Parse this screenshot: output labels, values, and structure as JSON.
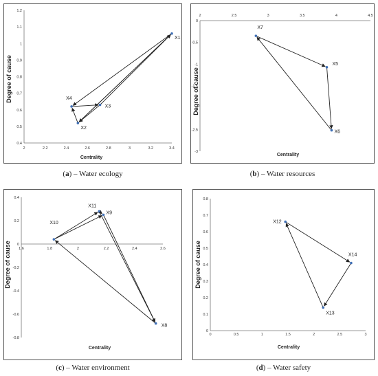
{
  "chart_data": [
    {
      "type": "line",
      "id": "a",
      "caption_letter": "a",
      "caption_text": " – Water ecology",
      "xlabel": "Centrality",
      "ylabel": "Degree of cause",
      "xlim": [
        2,
        3.4
      ],
      "ylim": [
        0.4,
        1.2
      ],
      "x_ticks": [
        "2",
        "2.2",
        "2.4",
        "2.6",
        "2.8",
        "3",
        "3.2",
        "3.4"
      ],
      "y_ticks": [
        "0.4",
        "0.5",
        "0.6",
        "0.7",
        "0.8",
        "0.9",
        "1",
        "1.1",
        "1.2"
      ],
      "points": [
        {
          "label": "X1",
          "x": 3.4,
          "y": 1.06
        },
        {
          "label": "X2",
          "x": 2.51,
          "y": 0.52
        },
        {
          "label": "X3",
          "x": 2.72,
          "y": 0.63
        },
        {
          "label": "X4",
          "x": 2.45,
          "y": 0.62
        }
      ],
      "edges": [
        [
          "X1",
          "X4"
        ],
        [
          "X4",
          "X3"
        ],
        [
          "X3",
          "X2"
        ],
        [
          "X2",
          "X4"
        ],
        [
          "X2",
          "X1"
        ],
        [
          "X3",
          "X1"
        ],
        [
          "X1",
          "X2"
        ]
      ]
    },
    {
      "type": "line",
      "id": "b",
      "caption_letter": "b",
      "caption_text": " – Water resources",
      "xlabel": "Centrality",
      "ylabel": "Degree of cause",
      "xlim": [
        2,
        4.5
      ],
      "ylim": [
        -3,
        0
      ],
      "x_ticks": [
        "2",
        "2.5",
        "3",
        "3.5",
        "4",
        "4.5"
      ],
      "y_ticks": [
        "0",
        "-0.5",
        "-1",
        "-1.5",
        "-2",
        "-2.5",
        "-3"
      ],
      "points": [
        {
          "label": "X5",
          "x": 3.86,
          "y": -1.07
        },
        {
          "label": "X6",
          "x": 3.93,
          "y": -2.52
        },
        {
          "label": "X7",
          "x": 2.82,
          "y": -0.35
        }
      ],
      "edges": [
        [
          "X7",
          "X5"
        ],
        [
          "X5",
          "X6"
        ],
        [
          "X6",
          "X7"
        ]
      ]
    },
    {
      "type": "line",
      "id": "c",
      "caption_letter": "c",
      "caption_text": " – Water environment",
      "xlabel": "Centrality",
      "ylabel": "Degree of cause",
      "xlim": [
        1.6,
        2.6
      ],
      "ylim": [
        -0.8,
        0.4
      ],
      "x_ticks": [
        "1.6",
        "1.8",
        "2",
        "2.2",
        "2.4",
        "2.6"
      ],
      "y_ticks": [
        "0.4",
        "0.2",
        "0",
        "-0.2",
        "-0.4",
        "-0.6",
        "-0.8"
      ],
      "points": [
        {
          "label": "X8",
          "x": 2.55,
          "y": -0.68
        },
        {
          "label": "X9",
          "x": 2.18,
          "y": 0.25
        },
        {
          "label": "X10",
          "x": 1.83,
          "y": 0.04
        },
        {
          "label": "X11",
          "x": 2.15,
          "y": 0.28
        }
      ],
      "edges": [
        [
          "X10",
          "X11"
        ],
        [
          "X11",
          "X9"
        ],
        [
          "X9",
          "X8"
        ],
        [
          "X8",
          "X10"
        ],
        [
          "X11",
          "X8"
        ],
        [
          "X10",
          "X9"
        ]
      ]
    },
    {
      "type": "line",
      "id": "d",
      "caption_letter": "d",
      "caption_text": " – Water safety",
      "xlabel": "Centrality",
      "ylabel": "Degree of cause",
      "xlim": [
        0,
        3
      ],
      "ylim": [
        0,
        0.8
      ],
      "x_ticks": [
        "0",
        "0.5",
        "1",
        "1.5",
        "2",
        "2.5",
        "3"
      ],
      "y_ticks": [
        "0",
        "0.1",
        "0.2",
        "0.3",
        "0.4",
        "0.5",
        "0.6",
        "0.7",
        "0.8"
      ],
      "points": [
        {
          "label": "X12",
          "x": 1.45,
          "y": 0.66
        },
        {
          "label": "X13",
          "x": 2.18,
          "y": 0.14
        },
        {
          "label": "X14",
          "x": 2.72,
          "y": 0.41
        }
      ],
      "edges": [
        [
          "X12",
          "X14"
        ],
        [
          "X14",
          "X13"
        ],
        [
          "X13",
          "X12"
        ]
      ]
    }
  ],
  "colors": {
    "line": "#222222",
    "marker": "#3f6fb5",
    "frame": "#555555"
  }
}
